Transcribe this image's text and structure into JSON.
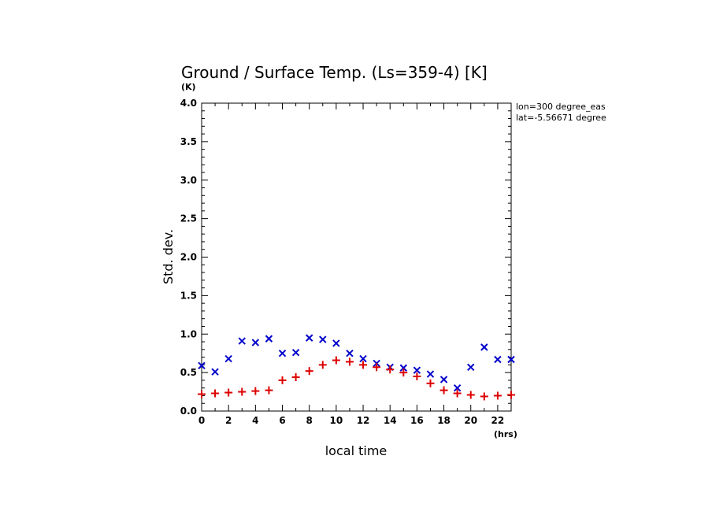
{
  "chart_data": {
    "type": "scatter",
    "title": "Ground / Surface Temp. (Ls=359-4) [K]",
    "xlabel": "local time",
    "ylabel": "Std. dev.",
    "x_unit": "(hrs)",
    "y_unit": "(K)",
    "xlim": [
      0,
      23
    ],
    "ylim": [
      0,
      4
    ],
    "x_ticks": [
      0,
      2,
      4,
      6,
      8,
      10,
      12,
      14,
      16,
      18,
      20,
      22
    ],
    "y_ticks": [
      "0.0",
      "0.5",
      "1.0",
      "1.5",
      "2.0",
      "2.5",
      "3.0",
      "3.5",
      "4.0"
    ],
    "annotations": [
      "lon=300 degree_eas",
      "lat=-5.56671 degree"
    ],
    "series": [
      {
        "marker": "x",
        "color": "#0000cc",
        "x": [
          0,
          1,
          2,
          3,
          4,
          5,
          6,
          7,
          8,
          9,
          10,
          11,
          12,
          13,
          14,
          15,
          16,
          17,
          18,
          19,
          20,
          21,
          22,
          23
        ],
        "y": [
          0.59,
          0.51,
          0.68,
          0.91,
          0.89,
          0.94,
          0.75,
          0.76,
          0.95,
          0.93,
          0.88,
          0.75,
          0.68,
          0.62,
          0.57,
          0.56,
          0.53,
          0.48,
          0.41,
          0.3,
          0.57,
          0.83,
          0.67,
          0.67
        ]
      },
      {
        "marker": "+",
        "color": "#dd0000",
        "x": [
          0,
          1,
          2,
          3,
          4,
          5,
          6,
          7,
          8,
          9,
          10,
          11,
          12,
          13,
          14,
          15,
          16,
          17,
          18,
          19,
          20,
          21,
          22,
          23
        ],
        "y": [
          0.22,
          0.23,
          0.24,
          0.25,
          0.26,
          0.27,
          0.4,
          0.44,
          0.52,
          0.6,
          0.66,
          0.64,
          0.6,
          0.57,
          0.54,
          0.5,
          0.45,
          0.36,
          0.27,
          0.23,
          0.21,
          0.19,
          0.2,
          0.21
        ]
      }
    ]
  }
}
